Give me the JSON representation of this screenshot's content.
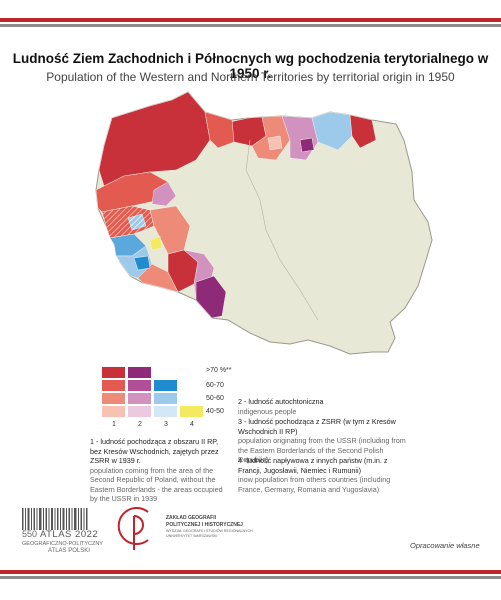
{
  "title": "Ludność Ziem Zachodnich i Północnych wg pochodzenia terytorialnego w 1950 r.",
  "subtitle": "Population of the Western and Northern Territories by territorial origin in 1950",
  "colors": {
    "bar_red": "#c0242c",
    "bar_gray": "#8c8c8c",
    "country": "#e8e8d6",
    "border": "#9a9a8c",
    "c1": [
      "#c8303a",
      "#e25a50",
      "#ee8a78",
      "#f7c2b4"
    ],
    "c2": [
      "#8e2a78",
      "#b04e98",
      "#d292c0",
      "#ebc9df"
    ],
    "c3": [
      "#1e8ccf",
      "#5aa8dc",
      "#9dcaea",
      "#d3e8f6"
    ],
    "c4": [
      "#f3ea62"
    ]
  },
  "legend": {
    "thresholds": [
      ">70 %**",
      "60-70",
      "50-60",
      "40-50"
    ],
    "columns": [
      "1",
      "2",
      "3",
      "4"
    ],
    "items": [
      {
        "pl": "1 - ludność pochodząca z obszaru II RP, bez Kresów Wschodnich, zajętych przez ZSRR w 1939 r.",
        "en": "population coming from the area of the Second Republic of Poland, without the Eastern Borderlands - the areas occupied by the USSR in 1939"
      },
      {
        "pl": "2 - ludność autochtoniczna",
        "en": "indigenous people"
      },
      {
        "pl": "3 - ludność pochodząca z ZSRR (w tym z Kresów Wschodnich II RP)",
        "en": "population originating from the USSR (including from the Eastern Borderlands of the Second Polish Republic)"
      },
      {
        "pl": "4 -ludność napływowa z innych państw (m.in. z Francji, Jugosławii, Niemiec i Rumunii)",
        "en": "inow population from others countries (including France, Germany, Romania and Yugoslavia)"
      }
    ]
  },
  "footer": {
    "atlas_main": "ATLAS 2022",
    "atlas_num": "550",
    "atlas_sub1": "GEOGRAFICZNO-POLITYCZNY",
    "atlas_sub2": "ATLAS POLSKI",
    "zaklad_1": "ZAKŁAD GEOGRAFII",
    "zaklad_2": "POLITYCZNEJ I HISTORYCZNEJ",
    "zaklad_3": "WYDZIAŁ GEOGRAFII I STUDIÓW REGIONALNYCH",
    "zaklad_4": "UNIWERSYTET WARSZAWSKI",
    "credit": "Opracowanie własne"
  }
}
